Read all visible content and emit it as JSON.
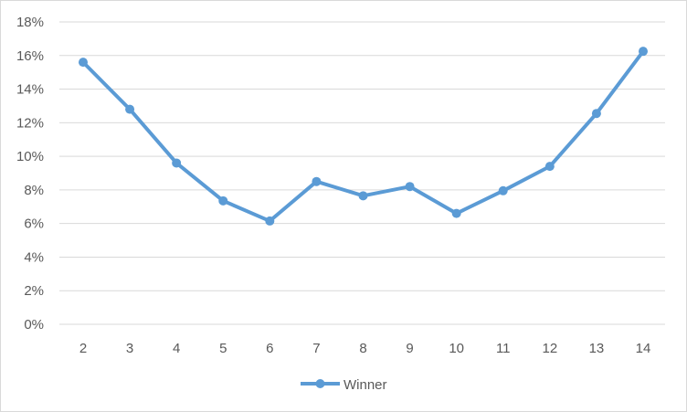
{
  "chart_data": {
    "type": "line",
    "title": "",
    "xlabel": "",
    "ylabel": "",
    "x": [
      2,
      3,
      4,
      5,
      6,
      7,
      8,
      9,
      10,
      11,
      12,
      13,
      14
    ],
    "series": [
      {
        "name": "Winner",
        "color": "#5b9bd5",
        "values": [
          15.6,
          12.8,
          9.6,
          7.35,
          6.15,
          8.5,
          7.65,
          8.2,
          6.6,
          7.95,
          9.4,
          12.55,
          16.25
        ]
      }
    ],
    "ylim": [
      0,
      18
    ],
    "yticks": [
      0,
      2,
      4,
      6,
      8,
      10,
      12,
      14,
      16,
      18
    ],
    "ytick_labels": [
      "0%",
      "2%",
      "4%",
      "6%",
      "8%",
      "10%",
      "12%",
      "14%",
      "16%",
      "18%"
    ],
    "xtick_labels": [
      "2",
      "3",
      "4",
      "5",
      "6",
      "7",
      "8",
      "9",
      "10",
      "11",
      "12",
      "13",
      "14"
    ],
    "grid": "horizontal",
    "legend": "bottom"
  }
}
